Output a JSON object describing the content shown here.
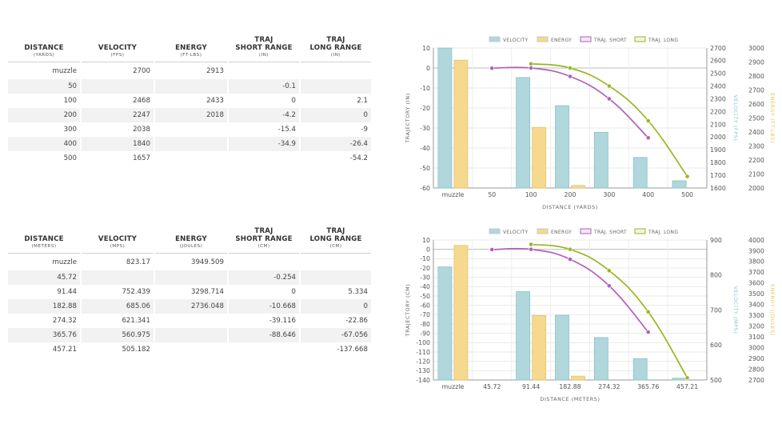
{
  "tables": [
    {
      "columns": [
        {
          "title": "DISTANCE",
          "unit": "(YARDS)"
        },
        {
          "title": "VELOCITY",
          "unit": "(FPS)"
        },
        {
          "title": "ENERGY",
          "unit": "(FT-LBS)"
        },
        {
          "title": "TRAJ\nSHORT RANGE",
          "unit": "(IN)"
        },
        {
          "title": "TRAJ\nLONG RANGE",
          "unit": "(IN)"
        }
      ],
      "rows": [
        [
          "muzzle",
          "2700",
          "2913",
          "",
          ""
        ],
        [
          "50",
          "",
          "",
          "-0.1",
          ""
        ],
        [
          "100",
          "2468",
          "2433",
          "0",
          "2.1"
        ],
        [
          "200",
          "2247",
          "2018",
          "-4.2",
          "0"
        ],
        [
          "300",
          "2038",
          "",
          "-15.4",
          "-9"
        ],
        [
          "400",
          "1840",
          "",
          "-34.9",
          "-26.4"
        ],
        [
          "500",
          "1657",
          "",
          "",
          "-54.2"
        ]
      ]
    },
    {
      "columns": [
        {
          "title": "DISTANCE",
          "unit": "(METERS)"
        },
        {
          "title": "VELOCITY",
          "unit": "(MPS)"
        },
        {
          "title": "ENERGY",
          "unit": "(JOULES)"
        },
        {
          "title": "TRAJ\nSHORT RANGE",
          "unit": "(CM)"
        },
        {
          "title": "TRAJ\nLONG RANGE",
          "unit": "(CM)"
        }
      ],
      "rows": [
        [
          "muzzle",
          "823.17",
          "3949.509",
          "",
          ""
        ],
        [
          "45.72",
          "",
          "",
          "-0.254",
          ""
        ],
        [
          "91.44",
          "752.439",
          "3298.714",
          "0",
          "5.334"
        ],
        [
          "182.88",
          "685.06",
          "2736.048",
          "-10.668",
          "0"
        ],
        [
          "274.32",
          "621.341",
          "",
          "-39.116",
          "-22.86"
        ],
        [
          "365.76",
          "560.975",
          "",
          "-88.646",
          "-67.056"
        ],
        [
          "457.21",
          "505.182",
          "",
          "",
          "-137.668"
        ]
      ]
    }
  ],
  "chart_data": [
    {
      "type": "bar",
      "categories": [
        "muzzle",
        "50",
        "100",
        "200",
        "300",
        "400",
        "500"
      ],
      "xlabel": "DISTANCE (YARDS)",
      "ylabel": "TRAJECTORY (IN)",
      "ylabel_right1": "VELOCITY (FPS)",
      "ylabel_right2": "ENERGY (FT-LBS)",
      "ylim": [
        -60,
        10
      ],
      "yticks": [
        10,
        0,
        -10,
        -20,
        -30,
        -40,
        -50,
        -60
      ],
      "y2lim": [
        1600,
        2700
      ],
      "y2ticks": [
        2700,
        2600,
        2500,
        2400,
        2300,
        2200,
        2100,
        2000,
        1900,
        1800,
        1700,
        1600
      ],
      "y3lim": [
        2000,
        3000
      ],
      "y3ticks": [
        3000,
        2900,
        2800,
        2700,
        2600,
        2500,
        2400,
        2300,
        2200,
        2100,
        2000
      ],
      "legend": "top",
      "grid": true,
      "series": [
        {
          "name": "VELOCITY",
          "kind": "bar",
          "axis": "y2",
          "color": "#afd7dc",
          "values": [
            2700,
            null,
            2468,
            2247,
            2038,
            1840,
            1657
          ]
        },
        {
          "name": "ENERGY",
          "kind": "bar",
          "axis": "y3",
          "color": "#f5d98e",
          "values": [
            2913,
            null,
            2433,
            2018,
            null,
            null,
            null
          ]
        },
        {
          "name": "TRAJ. SHORT",
          "kind": "line",
          "axis": "y",
          "color": "#b260b8",
          "values": [
            null,
            -0.1,
            0,
            -4.2,
            -15.4,
            -34.9,
            null
          ]
        },
        {
          "name": "TRAJ. LONG",
          "kind": "line",
          "axis": "y",
          "color": "#9cb521",
          "values": [
            null,
            null,
            2.1,
            0,
            -9,
            -26.4,
            -54.2
          ]
        }
      ]
    },
    {
      "type": "bar",
      "categories": [
        "muzzle",
        "45.72",
        "91.44",
        "182.88",
        "274.32",
        "365.76",
        "457.21"
      ],
      "xlabel": "DISTANCE (METERS)",
      "ylabel": "TRAJECTORY (CM)",
      "ylabel_right1": "VELOCITY (MPS)",
      "ylabel_right2": "ENERGY (JOULES)",
      "ylim": [
        -140,
        10
      ],
      "yticks": [
        10,
        0,
        -10,
        -20,
        -30,
        -40,
        -50,
        -60,
        -70,
        -80,
        -90,
        -100,
        -110,
        -120,
        -130,
        -140
      ],
      "y2lim": [
        500,
        900
      ],
      "y2ticks": [
        900,
        800,
        700,
        600,
        500
      ],
      "y3lim": [
        2700,
        4000
      ],
      "y3ticks": [
        4000,
        3900,
        3800,
        3700,
        3600,
        3500,
        3400,
        3300,
        3200,
        3100,
        3000,
        2900,
        2800,
        2700
      ],
      "legend": "top",
      "grid": true,
      "series": [
        {
          "name": "VELOCITY",
          "kind": "bar",
          "axis": "y2",
          "color": "#afd7dc",
          "values": [
            823.17,
            null,
            752.439,
            685.06,
            621.341,
            560.975,
            505.182
          ]
        },
        {
          "name": "ENERGY",
          "kind": "bar",
          "axis": "y3",
          "color": "#f5d98e",
          "values": [
            3949.509,
            null,
            3298.714,
            2736.048,
            null,
            null,
            null
          ]
        },
        {
          "name": "TRAJ. SHORT",
          "kind": "line",
          "axis": "y",
          "color": "#b260b8",
          "values": [
            null,
            -0.254,
            0,
            -10.668,
            -39.116,
            -88.646,
            null
          ]
        },
        {
          "name": "TRAJ. LONG",
          "kind": "line",
          "axis": "y",
          "color": "#9cb521",
          "values": [
            null,
            null,
            5.334,
            0,
            -22.86,
            -67.056,
            -137.668
          ]
        }
      ]
    }
  ]
}
